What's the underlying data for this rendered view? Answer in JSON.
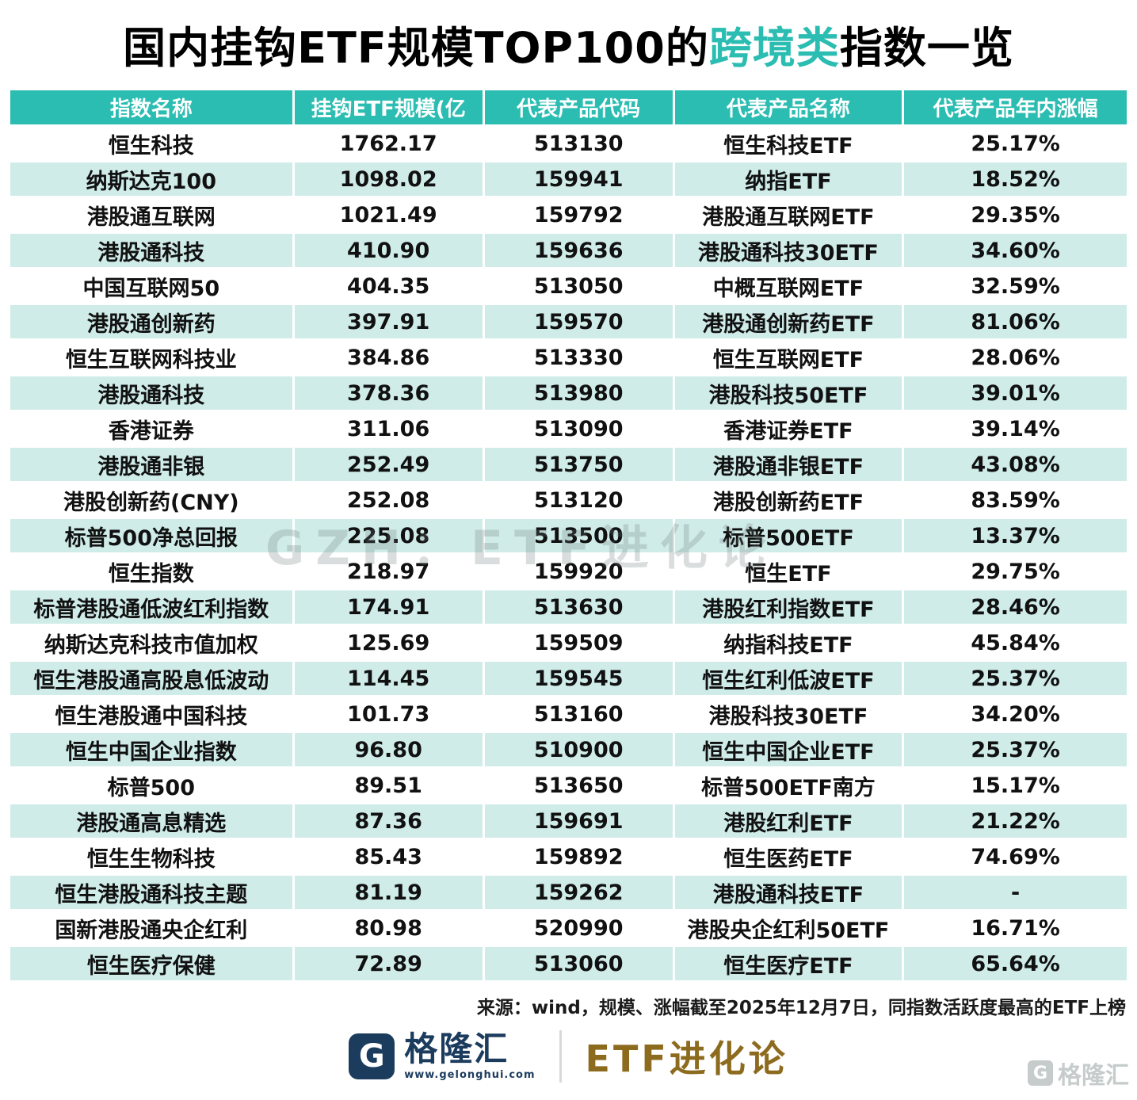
{
  "title": {
    "prefix": "国内挂钩ETF规模TOP100的",
    "highlight": "跨境类",
    "suffix": "指数一览"
  },
  "chart_data": {
    "type": "table",
    "title": "国内挂钩ETF规模TOP100的跨境类指数一览",
    "columns": [
      "指数名称",
      "挂钩ETF规模(亿",
      "代表产品代码",
      "代表产品名称",
      "代表产品年内涨幅"
    ],
    "rows": [
      [
        "恒生科技",
        "1762.17",
        "513130",
        "恒生科技ETF",
        "25.17%"
      ],
      [
        "纳斯达克100",
        "1098.02",
        "159941",
        "纳指ETF",
        "18.52%"
      ],
      [
        "港股通互联网",
        "1021.49",
        "159792",
        "港股通互联网ETF",
        "29.35%"
      ],
      [
        "港股通科技",
        "410.90",
        "159636",
        "港股通科技30ETF",
        "34.60%"
      ],
      [
        "中国互联网50",
        "404.35",
        "513050",
        "中概互联网ETF",
        "32.59%"
      ],
      [
        "港股通创新药",
        "397.91",
        "159570",
        "港股通创新药ETF",
        "81.06%"
      ],
      [
        "恒生互联网科技业",
        "384.86",
        "513330",
        "恒生互联网ETF",
        "28.06%"
      ],
      [
        "港股通科技",
        "378.36",
        "513980",
        "港股科技50ETF",
        "39.01%"
      ],
      [
        "香港证券",
        "311.06",
        "513090",
        "香港证券ETF",
        "39.14%"
      ],
      [
        "港股通非银",
        "252.49",
        "513750",
        "港股通非银ETF",
        "43.08%"
      ],
      [
        "港股创新药(CNY)",
        "252.08",
        "513120",
        "港股创新药ETF",
        "83.59%"
      ],
      [
        "标普500净总回报",
        "225.08",
        "513500",
        "标普500ETF",
        "13.37%"
      ],
      [
        "恒生指数",
        "218.97",
        "159920",
        "恒生ETF",
        "29.75%"
      ],
      [
        "标普港股通低波红利指数",
        "174.91",
        "513630",
        "港股红利指数ETF",
        "28.46%"
      ],
      [
        "纳斯达克科技市值加权",
        "125.69",
        "159509",
        "纳指科技ETF",
        "45.84%"
      ],
      [
        "恒生港股通高股息低波动",
        "114.45",
        "159545",
        "恒生红利低波ETF",
        "25.37%"
      ],
      [
        "恒生港股通中国科技",
        "101.73",
        "513160",
        "港股科技30ETF",
        "34.20%"
      ],
      [
        "恒生中国企业指数",
        "96.80",
        "510900",
        "恒生中国企业ETF",
        "25.37%"
      ],
      [
        "标普500",
        "89.51",
        "513650",
        "标普500ETF南方",
        "15.17%"
      ],
      [
        "港股通高息精选",
        "87.36",
        "159691",
        "港股红利ETF",
        "21.22%"
      ],
      [
        "恒生生物科技",
        "85.43",
        "159892",
        "恒生医药ETF",
        "74.69%"
      ],
      [
        "恒生港股通科技主题",
        "81.19",
        "159262",
        "港股通科技ETF",
        "-"
      ],
      [
        "国新港股通央企红利",
        "80.98",
        "520990",
        "港股央企红利50ETF",
        "16.71%"
      ],
      [
        "恒生医疗保健",
        "72.89",
        "513060",
        "恒生医疗ETF",
        "65.64%"
      ]
    ]
  },
  "watermark": "GZH：ETF进化论",
  "footer": {
    "source": "来源：wind，规模、涨幅截至2025年12月7日，同指数活跃度最高的ETF上榜",
    "brand_name": "格隆汇",
    "brand_url": "www.gelonghui.com",
    "brand_icon_letter": "G",
    "brand_right": "ETF进化论",
    "corner_watermark": "格隆汇"
  },
  "colors": {
    "header_bg": "#2BBDB2",
    "row_alt_bg": "#CFECE9",
    "title_highlight": "#2BBDB2",
    "brand_navy": "#1C3C5E",
    "brand_gold": "#8D6B1E"
  }
}
